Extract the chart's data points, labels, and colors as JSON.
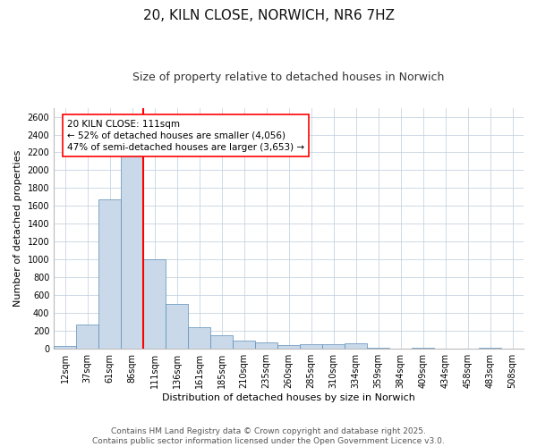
{
  "title": "20, KILN CLOSE, NORWICH, NR6 7HZ",
  "subtitle": "Size of property relative to detached houses in Norwich",
  "xlabel": "Distribution of detached houses by size in Norwich",
  "ylabel": "Number of detached properties",
  "categories": [
    "12sqm",
    "37sqm",
    "61sqm",
    "86sqm",
    "111sqm",
    "136sqm",
    "161sqm",
    "185sqm",
    "210sqm",
    "235sqm",
    "260sqm",
    "285sqm",
    "310sqm",
    "334sqm",
    "359sqm",
    "384sqm",
    "409sqm",
    "434sqm",
    "458sqm",
    "483sqm",
    "508sqm"
  ],
  "values": [
    30,
    270,
    1670,
    2170,
    1000,
    500,
    240,
    150,
    90,
    70,
    40,
    50,
    50,
    60,
    10,
    0,
    10,
    0,
    0,
    10,
    0
  ],
  "bar_color": "#c9d9ea",
  "bar_edge_color": "#5b8db8",
  "bar_width": 1.0,
  "ref_line_index": 4,
  "ref_line_color": "red",
  "annotation_text": "20 KILN CLOSE: 111sqm\n← 52% of detached houses are smaller (4,056)\n47% of semi-detached houses are larger (3,653) →",
  "annotation_box_color": "white",
  "annotation_box_edge": "red",
  "ylim": [
    0,
    2700
  ],
  "yticks": [
    0,
    200,
    400,
    600,
    800,
    1000,
    1200,
    1400,
    1600,
    1800,
    2000,
    2200,
    2400,
    2600
  ],
  "footer_line1": "Contains HM Land Registry data © Crown copyright and database right 2025.",
  "footer_line2": "Contains public sector information licensed under the Open Government Licence v3.0.",
  "background_color": "#ffffff",
  "grid_color": "#c8d4e0",
  "title_fontsize": 11,
  "subtitle_fontsize": 9,
  "axis_label_fontsize": 8,
  "tick_fontsize": 7,
  "annotation_fontsize": 7.5,
  "footer_fontsize": 6.5
}
